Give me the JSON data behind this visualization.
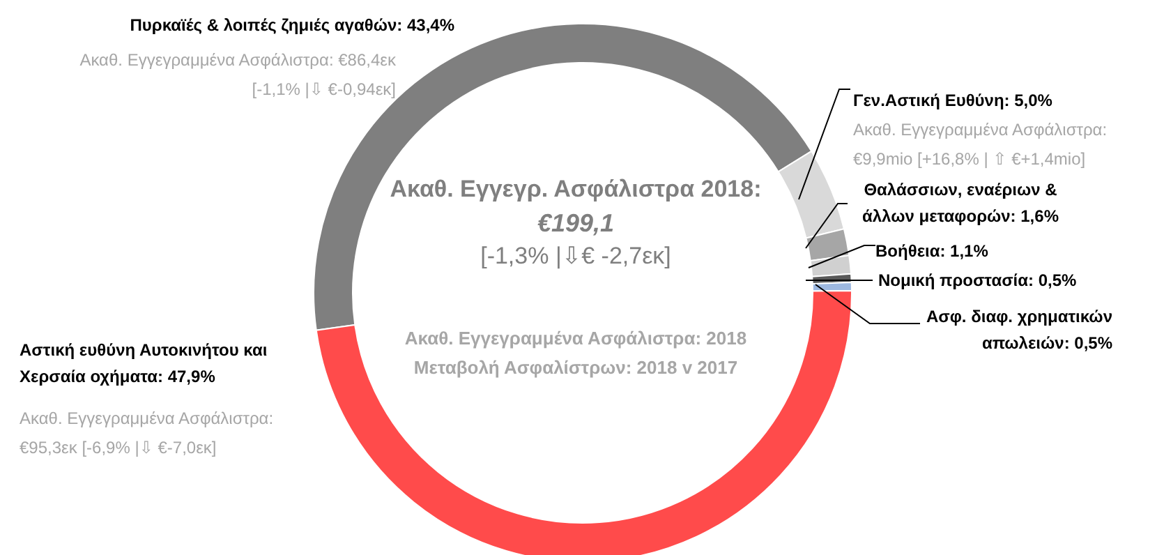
{
  "chart_data": {
    "type": "donut",
    "title": "Ακαθ. Εγγεγρ. Ασφάλιστρα 2018:",
    "categories": [
      "Πυρκαϊές & λοιπές ζημιές αγαθών",
      "Γεν.Αστική Ευθύνη",
      "Θαλάσσιων, εναέριων & άλλων μεταφορών",
      "Βοήθεια",
      "Νομική προστασία",
      "Ασφ. διαφ. χρηματικών απωλειών",
      "Αστική ευθύνη Αυτοκινήτου και Χερσαία οχήματα"
    ],
    "values": [
      43.4,
      5.0,
      1.6,
      1.1,
      0.5,
      0.5,
      47.9
    ],
    "value_labels": [
      "43,4%",
      "5,0%",
      "1,6%",
      "1,1%",
      "0,5%",
      "0,5%",
      "47,9%"
    ],
    "colors": [
      "#7f7f7f",
      "#d9d9d9",
      "#a6a6a6",
      "#d0d0d0",
      "#595959",
      "#9db8e0",
      "#ff4b4b"
    ],
    "annotations": [
      "Ακαθ. Εγγεγραμμένα Ασφάλιστρα: €86,4εκ [-1,1% |⇩ €-0,94εκ]",
      "Ακαθ. Εγγεγραμμένα Ασφάλιστρα: €9,9mio [+16,8% | ⇧ €+1,4mio]",
      "Ακαθ. Εγγεγραμμένα Ασφάλιστρα: €95,3εκ [-6,9% |⇩ €-7,0εκ]",
      "€199,1",
      "[-1,3% |⇩€ -2,7εκ]",
      "Ακαθ. Εγγεγραμμένα Ασφάλιστρα: 2018",
      "Μεταβολή Ασφαλίστρων:  2018 v 2017"
    ]
  }
}
